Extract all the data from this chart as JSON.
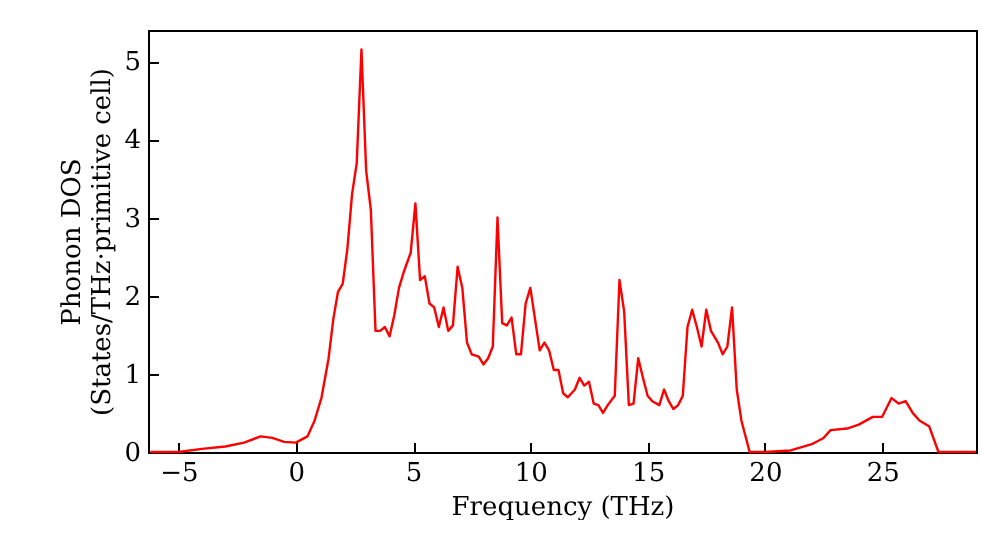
{
  "chart_data": {
    "type": "line",
    "xlabel": "Frequency (THz)",
    "ylabel": "Phonon DOS\n(States/THz·primitive cell)",
    "xlim": [
      -6.3,
      29
    ],
    "ylim": [
      0,
      5.4
    ],
    "xticks": [
      -5,
      0,
      5,
      10,
      15,
      20,
      25
    ],
    "yticks": [
      0,
      1,
      2,
      3,
      4,
      5
    ],
    "grid": false,
    "marker": "none",
    "line_style": "solid",
    "series": [
      {
        "color": "#ff0000",
        "x": [
          -6.2,
          -5,
          -4,
          -3,
          -2.2,
          -1.5,
          -1,
          -0.5,
          0,
          0.5,
          0.8,
          1.1,
          1.4,
          1.6,
          1.8,
          2.0,
          2.2,
          2.4,
          2.6,
          2.8,
          3.0,
          3.2,
          3.4,
          3.6,
          3.8,
          4.0,
          4.2,
          4.4,
          4.6,
          4.9,
          5.1,
          5.3,
          5.5,
          5.7,
          5.9,
          6.1,
          6.3,
          6.5,
          6.7,
          6.9,
          7.1,
          7.3,
          7.5,
          7.8,
          8.0,
          8.2,
          8.4,
          8.6,
          8.8,
          9.0,
          9.2,
          9.4,
          9.6,
          9.8,
          10.0,
          10.2,
          10.4,
          10.6,
          10.8,
          11.0,
          11.2,
          11.4,
          11.6,
          11.9,
          12.1,
          12.3,
          12.5,
          12.7,
          12.9,
          13.1,
          13.3,
          13.6,
          13.8,
          14.0,
          14.2,
          14.4,
          14.6,
          14.8,
          15.0,
          15.2,
          15.5,
          15.7,
          15.9,
          16.1,
          16.3,
          16.5,
          16.7,
          16.9,
          17.1,
          17.3,
          17.5,
          17.7,
          18.0,
          18.2,
          18.4,
          18.6,
          18.8,
          19.0,
          19.35,
          20,
          21.1,
          22,
          22.5,
          22.8,
          23.5,
          24,
          24.6,
          25,
          25.4,
          25.7,
          26.0,
          26.3,
          26.6,
          27.0,
          27.4,
          28,
          29
        ],
        "values": [
          0,
          0,
          0.04,
          0.07,
          0.12,
          0.2,
          0.18,
          0.13,
          0.12,
          0.2,
          0.4,
          0.7,
          1.2,
          1.7,
          2.05,
          2.15,
          2.6,
          3.3,
          3.7,
          5.15,
          3.6,
          3.1,
          1.55,
          1.55,
          1.6,
          1.48,
          1.75,
          2.1,
          2.3,
          2.55,
          3.18,
          2.2,
          2.25,
          1.9,
          1.85,
          1.6,
          1.85,
          1.55,
          1.62,
          2.37,
          2.1,
          1.4,
          1.25,
          1.22,
          1.12,
          1.2,
          1.35,
          3.0,
          1.65,
          1.62,
          1.72,
          1.25,
          1.25,
          1.9,
          2.1,
          1.7,
          1.3,
          1.4,
          1.3,
          1.05,
          1.05,
          0.75,
          0.7,
          0.8,
          0.95,
          0.85,
          0.9,
          0.62,
          0.6,
          0.5,
          0.6,
          0.72,
          2.2,
          1.8,
          0.6,
          0.62,
          1.2,
          0.95,
          0.72,
          0.65,
          0.6,
          0.8,
          0.65,
          0.55,
          0.6,
          0.72,
          1.6,
          1.82,
          1.6,
          1.35,
          1.82,
          1.55,
          1.4,
          1.25,
          1.35,
          1.85,
          0.8,
          0.4,
          0,
          0,
          0.02,
          0.1,
          0.18,
          0.28,
          0.3,
          0.35,
          0.45,
          0.45,
          0.69,
          0.62,
          0.65,
          0.5,
          0.4,
          0.33,
          0,
          0,
          0
        ]
      }
    ]
  }
}
